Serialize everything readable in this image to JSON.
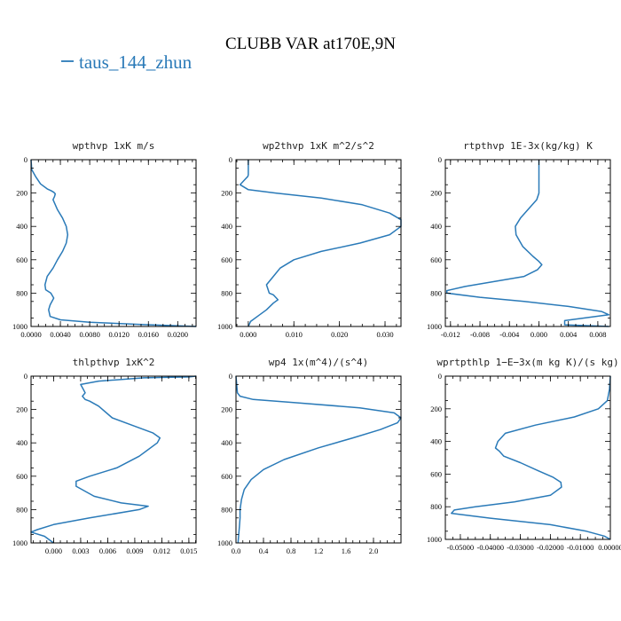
{
  "figure": {
    "title": "CLUBB VAR at170E,9N",
    "legend": {
      "label": "taus_144_zhun",
      "color": "#2a7ab8"
    }
  },
  "chart_data": [
    {
      "type": "line",
      "title": "wpthvp   1xK m/s",
      "xlim": [
        0.0,
        0.0225
      ],
      "ylim": [
        1000,
        0
      ],
      "xticks": [
        "0.0000",
        "0.0040",
        "0.0080",
        "0.0120",
        "0.0160",
        "0.0200"
      ],
      "xtick_values": [
        0.0,
        0.004,
        0.008,
        0.012,
        0.016,
        0.02
      ],
      "yticks": [
        "0",
        "200",
        "400",
        "600",
        "800",
        "1000"
      ],
      "ytick_values": [
        0,
        200,
        400,
        600,
        800,
        1000
      ],
      "series": [
        {
          "x": [
            0.0,
            0.0001,
            0.0006,
            0.0013,
            0.0022,
            0.0027,
            0.0031,
            0.0033,
            0.0032,
            0.003,
            0.0036,
            0.0043,
            0.0048,
            0.005,
            0.0048,
            0.0043,
            0.0036,
            0.003,
            0.0022,
            0.0019,
            0.002,
            0.0027,
            0.0031,
            0.0026,
            0.0024,
            0.0026,
            0.004,
            0.008,
            0.015,
            0.0225
          ],
          "y": [
            0,
            60,
            100,
            145,
            175,
            185,
            195,
            205,
            220,
            240,
            300,
            350,
            400,
            450,
            500,
            550,
            600,
            650,
            700,
            750,
            780,
            800,
            830,
            870,
            900,
            940,
            960,
            975,
            988,
            1000
          ]
        }
      ]
    },
    {
      "type": "line",
      "title": "wp2thvp   1xK m^2/s^2",
      "xlim": [
        -0.0027,
        0.0335
      ],
      "ylim": [
        1000,
        0
      ],
      "xticks": [
        "0.000",
        "0.010",
        "0.020",
        "0.030"
      ],
      "xtick_values": [
        0.0,
        0.01,
        0.02,
        0.03
      ],
      "yticks": [
        "0",
        "200",
        "400",
        "600",
        "800",
        "1000"
      ],
      "ytick_values": [
        0,
        200,
        400,
        600,
        800,
        1000
      ],
      "series": [
        {
          "x": [
            0.0,
            0.0,
            -0.0001,
            -0.0008,
            -0.0018,
            0.0,
            0.006,
            0.016,
            0.025,
            0.031,
            0.0335,
            0.0335,
            0.031,
            0.0245,
            0.016,
            0.01,
            0.007,
            0.0055,
            0.004,
            0.0046,
            0.0055,
            0.0065,
            0.0055,
            0.004,
            0.0025,
            0.0005,
            0.0
          ],
          "y": [
            0,
            90,
            100,
            120,
            150,
            180,
            200,
            230,
            270,
            320,
            360,
            400,
            450,
            500,
            550,
            600,
            650,
            700,
            750,
            800,
            810,
            840,
            860,
            900,
            930,
            970,
            1000
          ]
        }
      ]
    },
    {
      "type": "line",
      "title": "rtpthvp   1E-3x(kg/kg) K",
      "xlim": [
        -0.0127,
        0.0097
      ],
      "ylim": [
        1000,
        0
      ],
      "xticks": [
        "-0.012",
        "-0.008",
        "-0.004",
        "0.000",
        "0.004",
        "0.008"
      ],
      "xtick_values": [
        -0.012,
        -0.008,
        -0.004,
        0.0,
        0.004,
        0.008
      ],
      "yticks": [
        "0",
        "200",
        "400",
        "600",
        "800",
        "1000"
      ],
      "ytick_values": [
        0,
        200,
        400,
        600,
        800,
        1000
      ],
      "series": [
        {
          "x": [
            0.0,
            0.0,
            -0.0003,
            -0.0015,
            -0.0025,
            -0.0032,
            -0.0031,
            -0.0022,
            -0.0008,
            0.0,
            0.0004,
            -0.0002,
            -0.002,
            -0.006,
            -0.01,
            -0.0125,
            -0.0125,
            -0.008,
            -0.002,
            0.004,
            0.0085,
            0.0095,
            0.006,
            0.0035,
            0.0035,
            0.0095
          ],
          "y": [
            0,
            200,
            240,
            300,
            350,
            400,
            450,
            520,
            580,
            610,
            630,
            660,
            700,
            730,
            760,
            785,
            800,
            825,
            850,
            880,
            910,
            930,
            950,
            965,
            990,
            1000
          ]
        }
      ]
    },
    {
      "type": "line",
      "title": "thlpthvp   1xK^2",
      "xlim": [
        -0.0025,
        0.0158
      ],
      "ylim": [
        1000,
        0
      ],
      "xticks": [
        "0.000",
        "0.003",
        "0.006",
        "0.009",
        "0.012",
        "0.015"
      ],
      "xtick_values": [
        0.0,
        0.003,
        0.006,
        0.009,
        0.012,
        0.015
      ],
      "yticks": [
        "0",
        "200",
        "400",
        "600",
        "800",
        "1000"
      ],
      "ytick_values": [
        0,
        200,
        400,
        600,
        800,
        1000
      ],
      "series": [
        {
          "x": [
            0.0158,
            0.015,
            0.01,
            0.005,
            0.003,
            0.0033,
            0.0035,
            0.0032,
            0.0035,
            0.004,
            0.005,
            0.0065,
            0.009,
            0.011,
            0.0118,
            0.0115,
            0.0095,
            0.007,
            0.004,
            0.0025,
            0.0025,
            0.0045,
            0.0075,
            0.0105,
            0.0095,
            0.004,
            0.0,
            -0.0018,
            -0.0025,
            -0.001,
            0.0
          ],
          "y": [
            0,
            5,
            10,
            30,
            50,
            80,
            100,
            120,
            140,
            150,
            180,
            250,
            300,
            340,
            370,
            400,
            480,
            550,
            600,
            630,
            660,
            720,
            760,
            780,
            800,
            850,
            890,
            920,
            935,
            960,
            1000
          ]
        }
      ]
    },
    {
      "type": "line",
      "title": "wp4   1x(m^4)/(s^4)",
      "xlim": [
        0.0,
        2.4
      ],
      "ylim": [
        1000,
        0
      ],
      "xticks": [
        "0.0",
        "0.4",
        "0.8",
        "1.2",
        "1.6",
        "2.0"
      ],
      "xtick_values": [
        0.0,
        0.4,
        0.8,
        1.2,
        1.6,
        2.0
      ],
      "yticks": [
        "0",
        "200",
        "400",
        "600",
        "800",
        "1000"
      ],
      "ytick_values": [
        0,
        200,
        400,
        600,
        800,
        1000
      ],
      "series": [
        {
          "x": [
            0.0,
            0.02,
            0.06,
            0.25,
            0.9,
            1.8,
            2.3,
            2.4,
            2.35,
            2.1,
            1.7,
            1.2,
            0.7,
            0.4,
            0.22,
            0.12,
            0.08,
            0.06,
            0.06,
            0.05,
            0.04,
            0.03
          ],
          "y": [
            0,
            100,
            120,
            140,
            160,
            190,
            220,
            250,
            280,
            320,
            370,
            430,
            500,
            560,
            620,
            680,
            740,
            800,
            850,
            900,
            950,
            1000
          ]
        }
      ]
    },
    {
      "type": "line",
      "title": "wprtpthlp   1−E−3x(m kg K)/(s kg)",
      "xlim": [
        -0.055,
        0.0
      ],
      "ylim": [
        1000,
        0
      ],
      "xticks": [
        "-0.05000",
        "-0.04000",
        "-0.03000",
        "-0.02000",
        "-0.01000",
        "0.00000"
      ],
      "xtick_values": [
        -0.05,
        -0.04,
        -0.03,
        -0.02,
        -0.01,
        0.0
      ],
      "yticks": [
        "0",
        "200",
        "400",
        "600",
        "800",
        "1000"
      ],
      "ytick_values": [
        0,
        200,
        400,
        600,
        800,
        1000
      ],
      "series": [
        {
          "x": [
            0.0,
            -0.0003,
            -0.001,
            -0.004,
            -0.012,
            -0.025,
            -0.035,
            -0.0375,
            -0.0383,
            -0.037,
            -0.0355,
            -0.03,
            -0.024,
            -0.019,
            -0.0165,
            -0.0163,
            -0.02,
            -0.032,
            -0.045,
            -0.052,
            -0.053,
            -0.04,
            -0.02,
            -0.008,
            -0.002,
            0.0
          ],
          "y": [
            0,
            80,
            150,
            200,
            250,
            300,
            350,
            400,
            440,
            460,
            490,
            530,
            580,
            620,
            650,
            680,
            730,
            770,
            800,
            820,
            840,
            870,
            910,
            950,
            980,
            1000
          ]
        }
      ]
    }
  ]
}
